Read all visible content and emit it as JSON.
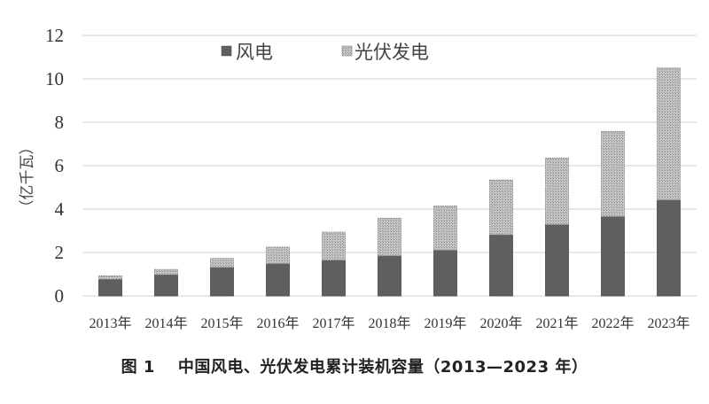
{
  "chart_data": {
    "type": "bar",
    "stacked": true,
    "title": "图 1    中国风电、光伏发电累计装机容量（2013—2023 年）",
    "xlabel": "",
    "ylabel": "（亿千瓦）",
    "ylim": [
      0,
      12
    ],
    "yticks": [
      0,
      2,
      4,
      6,
      8,
      10,
      12
    ],
    "grid": true,
    "legend_position": "top",
    "categories": [
      "2013年",
      "2014年",
      "2015年",
      "2016年",
      "2017年",
      "2018年",
      "2019年",
      "2020年",
      "2021年",
      "2022年",
      "2023年"
    ],
    "series": [
      {
        "name": "风电",
        "color": "#5f5f5f",
        "pattern": "solid",
        "values": [
          0.76,
          0.97,
          1.31,
          1.48,
          1.64,
          1.84,
          2.1,
          2.81,
          3.28,
          3.65,
          4.41
        ]
      },
      {
        "name": "光伏发电",
        "color": "#bdbdbd",
        "pattern": "dotted",
        "values": [
          0.16,
          0.25,
          0.42,
          0.77,
          1.3,
          1.74,
          2.04,
          2.53,
          3.07,
          3.93,
          6.09
        ]
      }
    ],
    "totals": [
      0.92,
      1.22,
      1.73,
      2.25,
      2.94,
      3.58,
      4.14,
      5.34,
      6.35,
      7.58,
      10.5
    ]
  },
  "legend": {
    "items": [
      {
        "label": "风电"
      },
      {
        "label": "光伏发电"
      }
    ]
  },
  "axis": {
    "y_label": "（亿千瓦）",
    "y_ticks": [
      "0",
      "2",
      "4",
      "6",
      "8",
      "10",
      "12"
    ]
  },
  "caption": {
    "figure_number": "图 1",
    "text": "中国风电、光伏发电累计装机容量（2013—2023 年）"
  }
}
